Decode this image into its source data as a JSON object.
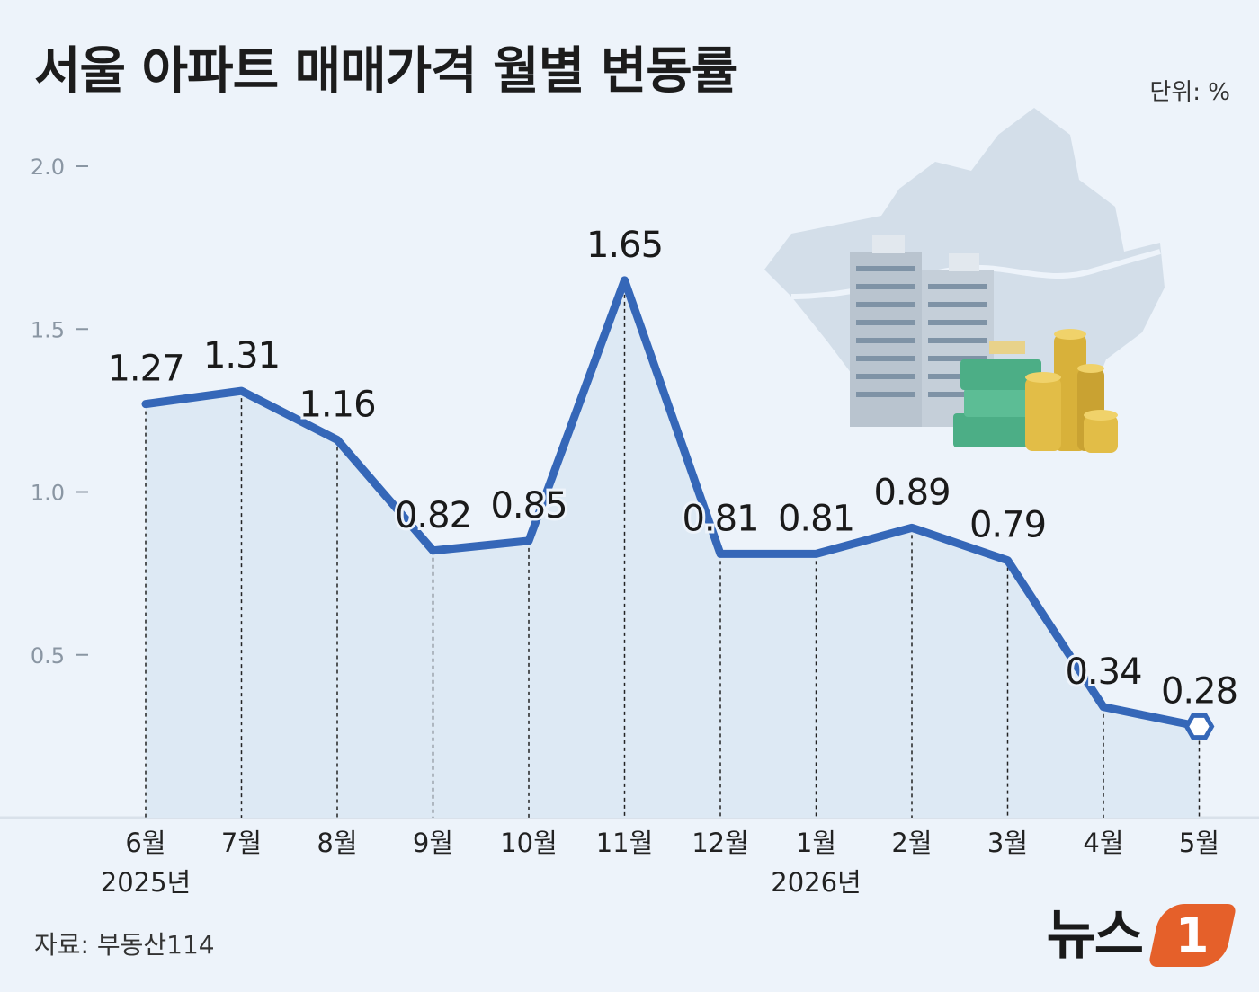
{
  "header": {
    "title": "서울 아파트 매매가격 월별 변동률",
    "unit": "단위: %"
  },
  "footer": {
    "source": "자료: 부동산114",
    "brand_text": "뉴스",
    "brand_logo": "1"
  },
  "colors": {
    "line": "#3567b8",
    "area": "#dde9f4",
    "background": "#edf3fa",
    "map": "#d3dee9"
  },
  "illustration": {
    "icons": [
      "seoul-map-icon",
      "apartment-buildings-icon",
      "money-stack-icon",
      "gold-coins-icon"
    ]
  },
  "chart_data": {
    "type": "line",
    "categories": [
      "6월",
      "7월",
      "8월",
      "9월",
      "10월",
      "11월",
      "12월",
      "1월",
      "2월",
      "3월",
      "4월",
      "5월"
    ],
    "year_labels": [
      {
        "category": "6월",
        "label": "2025년"
      },
      {
        "category": "1월",
        "label": "2026년"
      }
    ],
    "values": [
      1.27,
      1.31,
      1.16,
      0.82,
      0.85,
      1.65,
      0.81,
      0.81,
      0.89,
      0.79,
      0.34,
      0.28
    ],
    "value_labels": [
      "1.27",
      "1.31",
      "1.16",
      "0.82",
      "0.85",
      "1.65",
      "0.81",
      "0.81",
      "0.89",
      "0.79",
      "0.34",
      "0.28"
    ],
    "title": "서울 아파트 매매가격 월별 변동률",
    "xlabel": "",
    "ylabel": "",
    "ylim": [
      0,
      2.0
    ],
    "yticks": [
      "0.5",
      "1.0",
      "1.5",
      "2.0"
    ],
    "grid": false
  }
}
